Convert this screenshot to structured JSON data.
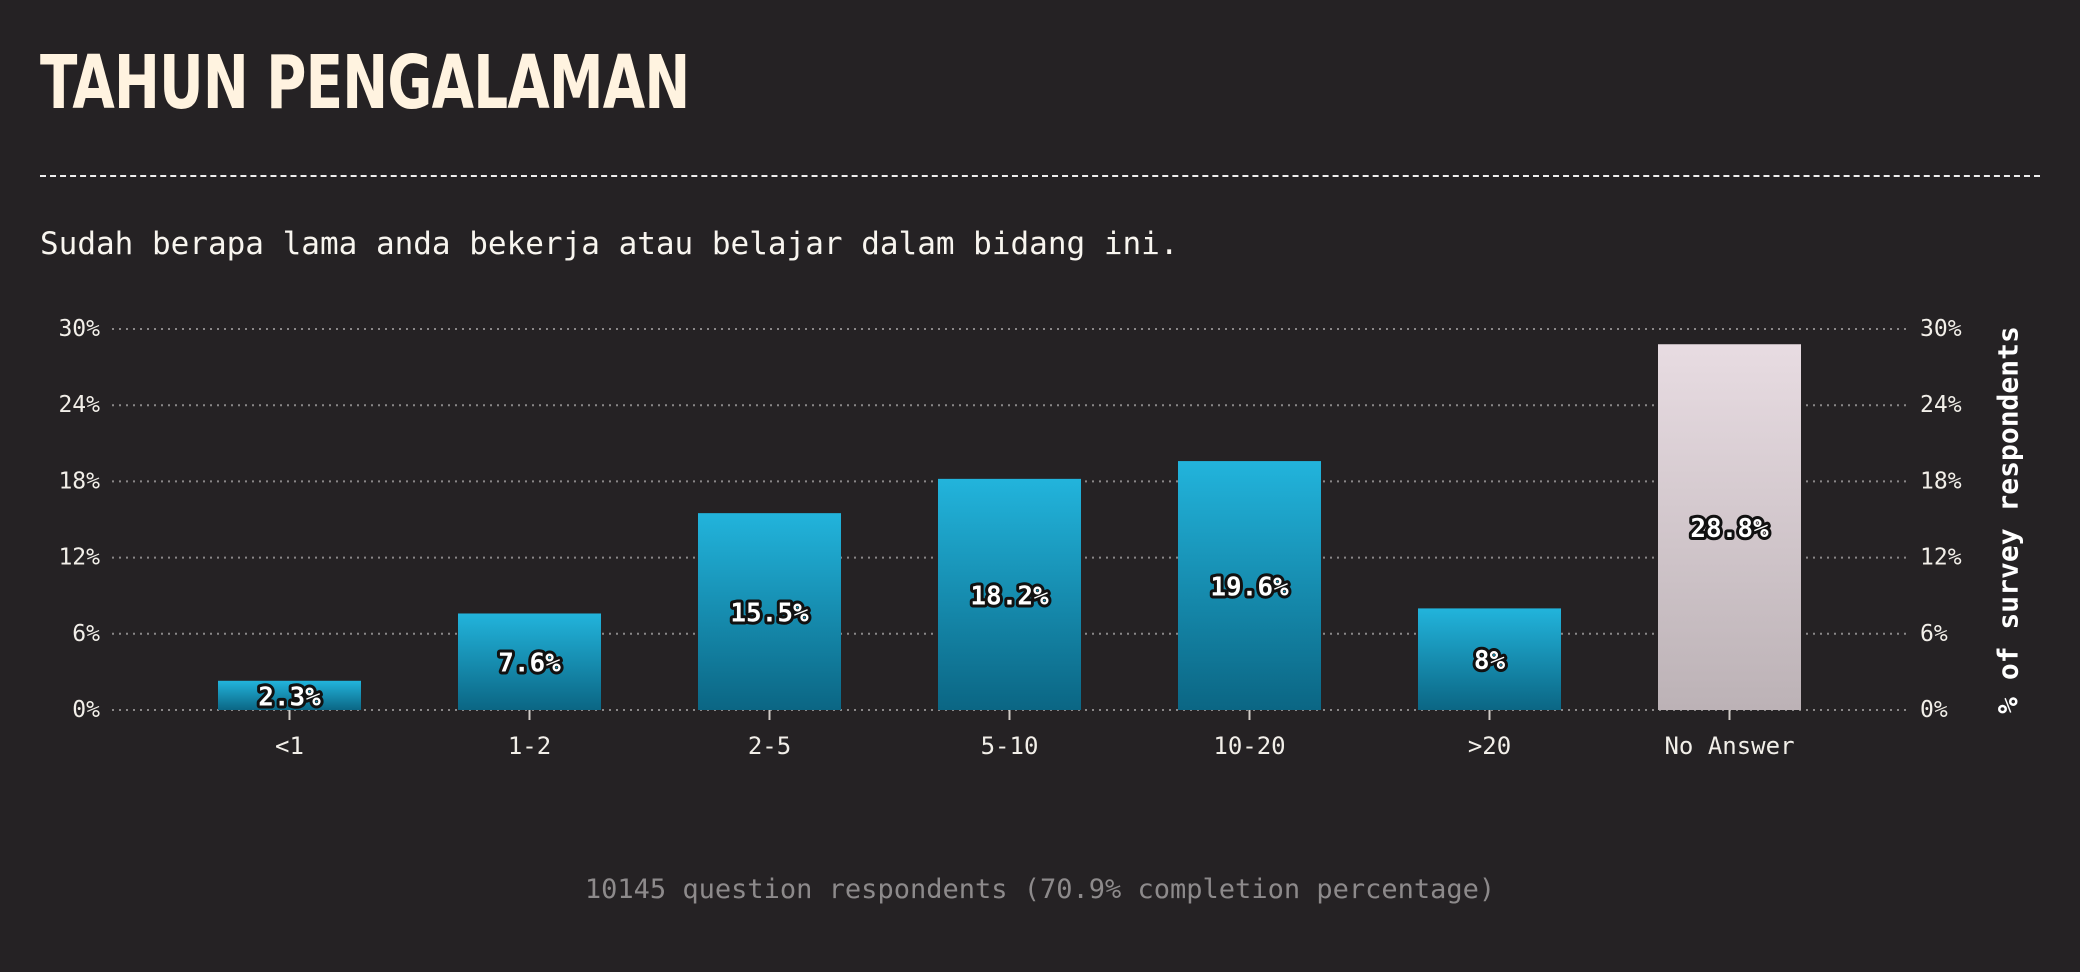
{
  "title": "TAHUN PENGALAMAN",
  "subtitle": "Sudah berapa lama anda bekerja atau belajar dalam bidang ini.",
  "footer": "10145 question respondents (70.9% completion percentage)",
  "colors": {
    "background": "#252224",
    "bar_top": "#22b4dc",
    "bar_bottom": "#0b6684",
    "highlight_top": "#e8dce2",
    "highlight_bottom": "#bcb2b6",
    "grid": "#8a8788"
  },
  "chart_data": {
    "type": "bar",
    "categories": [
      "<1",
      "1-2",
      "2-5",
      "5-10",
      "10-20",
      ">20",
      "No Answer"
    ],
    "values": [
      2.3,
      7.6,
      15.5,
      18.2,
      19.6,
      8,
      28.8
    ],
    "value_labels": [
      "2.3%",
      "7.6%",
      "15.5%",
      "18.2%",
      "19.6%",
      "8%",
      "28.8%"
    ],
    "highlight_category": "No Answer",
    "ylim": [
      0,
      30
    ],
    "yticks": [
      "0%",
      "6%",
      "12%",
      "18%",
      "24%",
      "30%"
    ],
    "ytick_values": [
      0,
      6,
      12,
      18,
      24,
      30
    ],
    "ylabel": "% of survey respondents",
    "xlabel": "",
    "grid": true
  }
}
